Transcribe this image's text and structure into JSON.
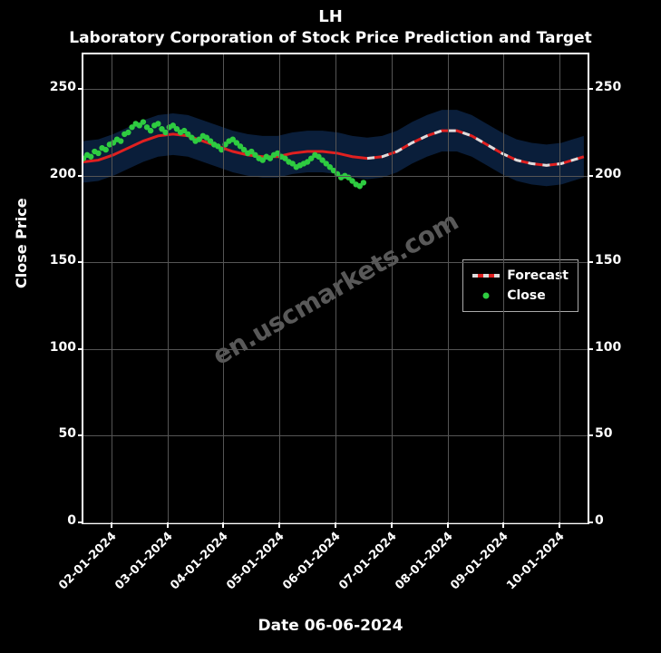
{
  "super_title": "LH",
  "title": "Laboratory Corporation of Stock Price Prediction and Target",
  "xlabel": "Date 06-06-2024",
  "ylabel": "Close Price",
  "watermark": "en.uscmarkets.com",
  "background_color": "#000000",
  "axis_line_color": "#ffffff",
  "grid_color": "#555555",
  "text_color": "#ffffff",
  "title_fontsize": 17,
  "super_title_fontsize": 18,
  "label_fontsize": 16,
  "tick_fontsize": 14,
  "ylim": [
    0,
    270
  ],
  "yticks": [
    0,
    50,
    100,
    150,
    200,
    250
  ],
  "x_categories": [
    "02-01-2024",
    "03-01-2024",
    "04-01-2024",
    "05-01-2024",
    "06-01-2024",
    "07-01-2024",
    "08-01-2024",
    "09-01-2024",
    "10-01-2024"
  ],
  "x_range_days": 270,
  "forecast": {
    "label": "Forecast",
    "line_color": "#e02020",
    "line_width": 3,
    "dash_color": "#dddddd",
    "dash_width": 3,
    "dash_pattern": "8,8",
    "band_color": "#0a1e3a",
    "band_opacity": 1.0,
    "band_halfwidth": 12,
    "points": [
      [
        0,
        208
      ],
      [
        8,
        209
      ],
      [
        16,
        212
      ],
      [
        24,
        216
      ],
      [
        32,
        220
      ],
      [
        40,
        223
      ],
      [
        48,
        224
      ],
      [
        56,
        223
      ],
      [
        64,
        220
      ],
      [
        72,
        217
      ],
      [
        80,
        214
      ],
      [
        88,
        212
      ],
      [
        96,
        211
      ],
      [
        104,
        211
      ],
      [
        112,
        213
      ],
      [
        120,
        214
      ],
      [
        128,
        214
      ],
      [
        136,
        213
      ],
      [
        144,
        211
      ],
      [
        152,
        210
      ],
      [
        160,
        211
      ],
      [
        168,
        214
      ],
      [
        176,
        219
      ],
      [
        184,
        223
      ],
      [
        192,
        226
      ],
      [
        200,
        226
      ],
      [
        208,
        223
      ],
      [
        216,
        218
      ],
      [
        224,
        213
      ],
      [
        232,
        209
      ],
      [
        240,
        207
      ],
      [
        248,
        206
      ],
      [
        256,
        207
      ],
      [
        262,
        209
      ],
      [
        268,
        211
      ]
    ]
  },
  "close": {
    "label": "Close",
    "marker_color": "#2ecc40",
    "marker_size": 3.2,
    "points": [
      [
        0,
        210
      ],
      [
        2,
        212
      ],
      [
        4,
        211
      ],
      [
        6,
        214
      ],
      [
        8,
        213
      ],
      [
        10,
        216
      ],
      [
        12,
        215
      ],
      [
        14,
        218
      ],
      [
        16,
        219
      ],
      [
        18,
        221
      ],
      [
        20,
        220
      ],
      [
        22,
        224
      ],
      [
        24,
        225
      ],
      [
        26,
        228
      ],
      [
        28,
        230
      ],
      [
        30,
        229
      ],
      [
        32,
        231
      ],
      [
        34,
        228
      ],
      [
        36,
        226
      ],
      [
        38,
        229
      ],
      [
        40,
        230
      ],
      [
        42,
        227
      ],
      [
        44,
        225
      ],
      [
        46,
        228
      ],
      [
        48,
        229
      ],
      [
        50,
        227
      ],
      [
        52,
        225
      ],
      [
        54,
        226
      ],
      [
        56,
        224
      ],
      [
        58,
        222
      ],
      [
        60,
        220
      ],
      [
        62,
        221
      ],
      [
        64,
        223
      ],
      [
        66,
        222
      ],
      [
        68,
        220
      ],
      [
        70,
        218
      ],
      [
        72,
        217
      ],
      [
        74,
        215
      ],
      [
        76,
        218
      ],
      [
        78,
        220
      ],
      [
        80,
        221
      ],
      [
        82,
        219
      ],
      [
        84,
        217
      ],
      [
        86,
        215
      ],
      [
        88,
        213
      ],
      [
        90,
        214
      ],
      [
        92,
        212
      ],
      [
        94,
        210
      ],
      [
        96,
        209
      ],
      [
        98,
        211
      ],
      [
        100,
        210
      ],
      [
        102,
        212
      ],
      [
        104,
        213
      ],
      [
        106,
        211
      ],
      [
        108,
        210
      ],
      [
        110,
        208
      ],
      [
        112,
        207
      ],
      [
        114,
        205
      ],
      [
        116,
        206
      ],
      [
        118,
        207
      ],
      [
        120,
        208
      ],
      [
        122,
        210
      ],
      [
        124,
        212
      ],
      [
        126,
        211
      ],
      [
        128,
        209
      ],
      [
        130,
        207
      ],
      [
        132,
        205
      ],
      [
        134,
        203
      ],
      [
        136,
        201
      ],
      [
        138,
        199
      ],
      [
        140,
        200
      ],
      [
        142,
        199
      ],
      [
        144,
        197
      ],
      [
        146,
        195
      ],
      [
        148,
        194
      ],
      [
        150,
        196
      ]
    ]
  },
  "legend": {
    "position": "inner-right",
    "border_color": "#aaaaaa",
    "background": "rgba(0,0,0,0.8)",
    "items": [
      "Forecast",
      "Close"
    ]
  }
}
